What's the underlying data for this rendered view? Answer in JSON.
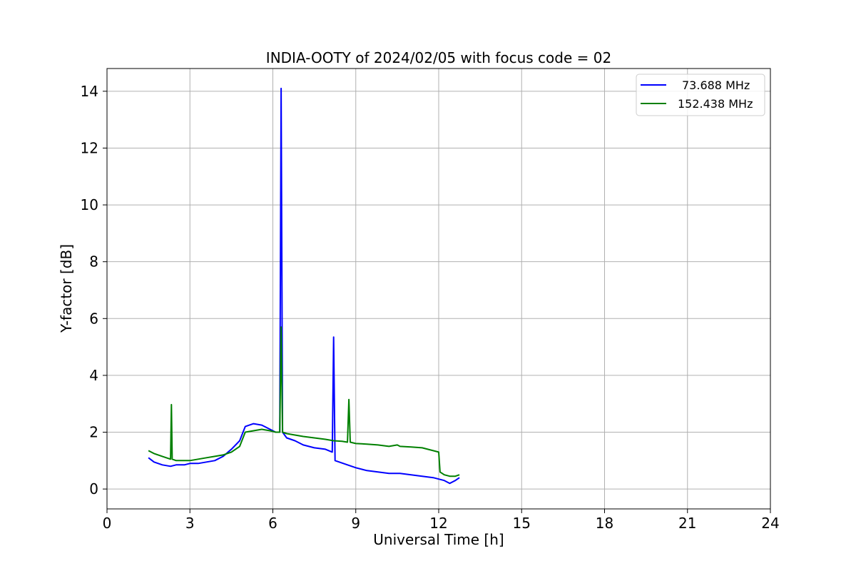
{
  "chart_data": {
    "type": "line",
    "title": "INDIA-OOTY of 2024/02/05 with focus code = 02",
    "xlabel": "Universal Time [h]",
    "ylabel": "Y-factor [dB]",
    "xlim": [
      0,
      24
    ],
    "ylim": [
      -0.7,
      14.8
    ],
    "xticks": [
      0,
      3,
      6,
      9,
      12,
      15,
      18,
      21,
      24
    ],
    "yticks": [
      0,
      2,
      4,
      6,
      8,
      10,
      12,
      14
    ],
    "grid": true,
    "legend_position": "top-right",
    "series": [
      {
        "name": "73.688 MHz",
        "color": "#0000ff",
        "x": [
          1.5,
          1.7,
          2.0,
          2.3,
          2.5,
          2.8,
          3.0,
          3.3,
          3.6,
          3.9,
          4.2,
          4.5,
          4.8,
          5.0,
          5.3,
          5.6,
          5.9,
          6.1,
          6.25,
          6.3,
          6.35,
          6.5,
          6.8,
          7.1,
          7.5,
          7.9,
          8.15,
          8.2,
          8.25,
          8.4,
          8.7,
          9.0,
          9.4,
          9.8,
          10.2,
          10.6,
          11.0,
          11.4,
          11.8,
          12.0,
          12.2,
          12.4,
          12.6,
          12.75
        ],
        "y": [
          1.1,
          0.95,
          0.85,
          0.8,
          0.85,
          0.85,
          0.9,
          0.9,
          0.95,
          1.0,
          1.15,
          1.4,
          1.7,
          2.2,
          2.3,
          2.25,
          2.1,
          2.0,
          2.0,
          14.1,
          2.0,
          1.8,
          1.7,
          1.55,
          1.45,
          1.4,
          1.3,
          5.35,
          1.0,
          0.95,
          0.85,
          0.75,
          0.65,
          0.6,
          0.55,
          0.55,
          0.5,
          0.45,
          0.4,
          0.35,
          0.3,
          0.2,
          0.3,
          0.4
        ]
      },
      {
        "name": "152.438 MHz",
        "color": "#008000",
        "x": [
          1.5,
          1.7,
          2.0,
          2.3,
          2.33,
          2.36,
          2.5,
          2.8,
          3.0,
          3.3,
          3.6,
          3.9,
          4.2,
          4.5,
          4.8,
          5.0,
          5.3,
          5.6,
          5.9,
          6.1,
          6.25,
          6.3,
          6.35,
          6.5,
          6.8,
          7.1,
          7.5,
          7.9,
          8.2,
          8.5,
          8.7,
          8.75,
          8.8,
          9.0,
          9.4,
          9.8,
          10.2,
          10.5,
          10.6,
          11.0,
          11.4,
          11.8,
          12.0,
          12.05,
          12.2,
          12.4,
          12.6,
          12.75
        ],
        "y": [
          1.35,
          1.25,
          1.15,
          1.05,
          2.97,
          1.05,
          1.0,
          1.0,
          1.0,
          1.05,
          1.1,
          1.15,
          1.2,
          1.3,
          1.5,
          2.0,
          2.05,
          2.1,
          2.05,
          2.0,
          2.0,
          5.7,
          2.0,
          1.95,
          1.9,
          1.85,
          1.8,
          1.75,
          1.7,
          1.68,
          1.65,
          3.15,
          1.65,
          1.6,
          1.58,
          1.55,
          1.5,
          1.55,
          1.5,
          1.48,
          1.45,
          1.35,
          1.3,
          0.6,
          0.5,
          0.45,
          0.45,
          0.5
        ]
      }
    ]
  }
}
